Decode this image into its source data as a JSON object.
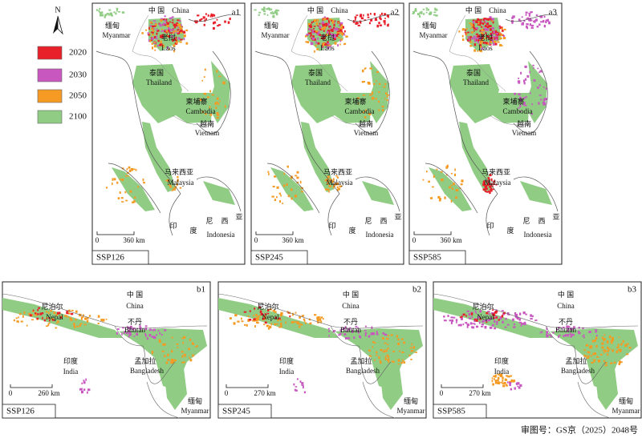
{
  "legend": {
    "north": "N",
    "items": [
      {
        "label": "2020",
        "color": "#e8202a"
      },
      {
        "label": "2030",
        "color": "#c858c0"
      },
      {
        "label": "2050",
        "color": "#f59a23"
      },
      {
        "label": "2100",
        "color": "#90cc84"
      }
    ]
  },
  "panels_a": [
    {
      "id": "a1",
      "scenario": "SSP126",
      "scale": [
        "0",
        "360 km"
      ],
      "places": [
        "中 国",
        "China",
        "缅甸",
        "Myanmar",
        "老挝",
        "Laos",
        "泰国",
        "Thailand",
        "柬埔寨",
        "Cambodia",
        "越南",
        "Vietnam",
        "马来西亚",
        "Malaysia",
        "印",
        "度",
        "尼",
        "西",
        "亚",
        "Indonesia"
      ]
    },
    {
      "id": "a2",
      "scenario": "SSP245",
      "scale": [
        "0",
        "360 km"
      ],
      "places": [
        "中 国",
        "China",
        "缅甸",
        "Myanmar",
        "老挝",
        "Laos",
        "泰国",
        "Thailand",
        "柬埔寨",
        "Cambodia",
        "越南",
        "Vietnam",
        "马来西亚",
        "Malaysia",
        "印",
        "度",
        "尼",
        "西",
        "亚",
        "Indonesia"
      ]
    },
    {
      "id": "a3",
      "scenario": "SSP585",
      "scale": [
        "0",
        "360 km"
      ],
      "places": [
        "中 国",
        "China",
        "缅甸",
        "Myanmar",
        "老挝",
        "Laos",
        "泰国",
        "Thailand",
        "柬埔寨",
        "Cambodia",
        "越南",
        "Vietnam",
        "马来西亚",
        "Malaysia",
        "印",
        "度",
        "尼",
        "西",
        "亚",
        "Indonesia"
      ]
    }
  ],
  "panels_b": [
    {
      "id": "b1",
      "scenario": "SSP126",
      "scale": [
        "0",
        "260 km"
      ],
      "places": [
        "中 国",
        "China",
        "尼泊尔",
        "Nepal",
        "不丹",
        "Bhutan",
        "印度",
        "India",
        "孟加拉",
        "Bangladesh",
        "缅甸",
        "Myanmar"
      ]
    },
    {
      "id": "b2",
      "scenario": "SSP245",
      "scale": [
        "0",
        "270 km"
      ],
      "places": [
        "中 国",
        "China",
        "尼泊尔",
        "Nepal",
        "不丹",
        "Bhutan",
        "印度",
        "India",
        "孟加拉",
        "Bangladesh",
        "缅甸",
        "Myanmar"
      ]
    },
    {
      "id": "b3",
      "scenario": "SSP585",
      "scale": [
        "0",
        "270 km"
      ],
      "places": [
        "中 国",
        "China",
        "尼泊尔",
        "Nepal",
        "不丹",
        "Bhutan",
        "印度",
        "India",
        "孟加拉",
        "Bangladesh",
        "缅甸",
        "Myanmar"
      ]
    }
  ],
  "approval": "审图号：GS京（2025）2048号"
}
